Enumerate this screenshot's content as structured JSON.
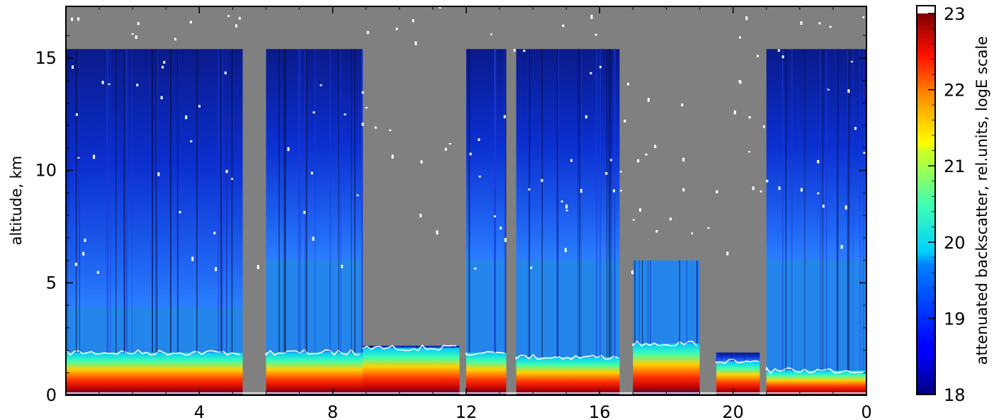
{
  "chart_data": {
    "type": "heatmap",
    "ylabel": "altitude, km",
    "x_ticks": [
      "4",
      "8",
      "12",
      "16",
      "20",
      "0"
    ],
    "x_tick_values": [
      4,
      8,
      12,
      16,
      20,
      24
    ],
    "xlim": [
      0,
      24
    ],
    "y_ticks": [
      "0",
      "5",
      "10",
      "15"
    ],
    "y_tick_values": [
      0,
      5,
      10,
      15
    ],
    "ylim": [
      0,
      17.3
    ],
    "colorbar": {
      "label": "attenuated backscatter, rel.units, logE scale",
      "ticks": [
        "18",
        "19",
        "20",
        "21",
        "22",
        "23"
      ],
      "tick_values": [
        18,
        19,
        20,
        21,
        22,
        23
      ],
      "range": [
        18,
        23
      ],
      "colormap": "jet",
      "over_color": "#ffffff",
      "under_color": "#000000"
    },
    "background_color": "#808080",
    "contour_color": "#ffffff",
    "profiles": [
      {
        "x_range": [
          0.0,
          5.3
        ],
        "top_km": 15.4,
        "boundary_layer_km": 1.9,
        "blue_layer_km": 3.9
      },
      {
        "x_range": [
          6.0,
          8.9
        ],
        "top_km": 15.4,
        "boundary_layer_km": 1.9,
        "blue_layer_km": 6.0
      },
      {
        "x_range": [
          8.9,
          11.8
        ],
        "top_km": 2.2,
        "boundary_layer_km": 2.1,
        "blue_layer_km": 2.1
      },
      {
        "x_range": [
          12.0,
          13.2
        ],
        "top_km": 15.4,
        "boundary_layer_km": 1.9,
        "blue_layer_km": 6.0
      },
      {
        "x_range": [
          13.5,
          16.6
        ],
        "top_km": 15.4,
        "boundary_layer_km": 1.7,
        "blue_layer_km": 6.0
      },
      {
        "x_range": [
          17.0,
          19.0
        ],
        "top_km": 6.0,
        "boundary_layer_km": 2.3,
        "blue_layer_km": 6.0
      },
      {
        "x_range": [
          19.5,
          20.8
        ],
        "top_km": 1.9,
        "boundary_layer_km": 1.5,
        "blue_layer_km": 1.5
      },
      {
        "x_range": [
          21.0,
          24.0
        ],
        "top_km": 15.4,
        "boundary_layer_km": 1.1,
        "blue_layer_km": 6.0
      }
    ]
  }
}
